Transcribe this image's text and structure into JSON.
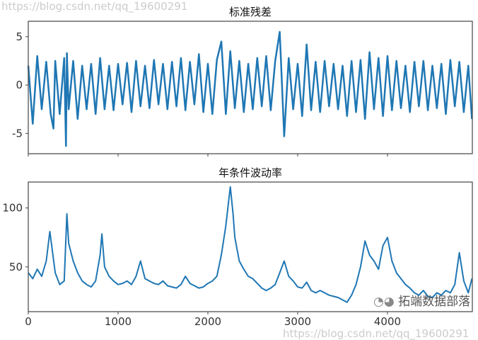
{
  "chart_data": [
    {
      "type": "line",
      "title": "标准残差",
      "color": "#1f77b4",
      "xlim": [
        0,
        4945
      ],
      "ylim": [
        -7.1,
        6.6
      ],
      "yticks": [
        5,
        0,
        -5
      ],
      "ytick_labels": [
        "5",
        "0",
        "-5"
      ],
      "xticks": [
        0,
        1000,
        2000,
        3000,
        4000
      ],
      "xtick_labels": [],
      "x": [
        0,
        50,
        100,
        150,
        200,
        250,
        280,
        300,
        350,
        400,
        420,
        430,
        450,
        500,
        550,
        600,
        650,
        700,
        750,
        800,
        850,
        900,
        950,
        1000,
        1050,
        1100,
        1150,
        1200,
        1250,
        1300,
        1350,
        1400,
        1450,
        1500,
        1550,
        1600,
        1650,
        1700,
        1750,
        1800,
        1850,
        1900,
        1950,
        2000,
        2050,
        2100,
        2150,
        2200,
        2250,
        2300,
        2350,
        2400,
        2450,
        2500,
        2550,
        2600,
        2650,
        2700,
        2750,
        2800,
        2850,
        2900,
        2950,
        3000,
        3050,
        3100,
        3150,
        3200,
        3250,
        3300,
        3350,
        3400,
        3450,
        3500,
        3550,
        3600,
        3650,
        3700,
        3750,
        3800,
        3850,
        3900,
        3950,
        4000,
        4050,
        4100,
        4150,
        4200,
        4250,
        4300,
        4350,
        4400,
        4450,
        4500,
        4550,
        4600,
        4650,
        4700,
        4750,
        4800,
        4850,
        4900,
        4940
      ],
      "y": [
        2,
        -4,
        3,
        -2.5,
        2.4,
        -3,
        -4.5,
        2.5,
        -3,
        2.8,
        -6.3,
        3.3,
        -2.5,
        2.5,
        -3.5,
        2,
        -2.5,
        2.2,
        -3,
        2.8,
        -2.5,
        2,
        -2.6,
        2.2,
        -2,
        2.3,
        -2.8,
        2.5,
        -2.2,
        2,
        -2.4,
        2.6,
        -2,
        2.2,
        -2.5,
        2.4,
        -2.2,
        2.8,
        -2.6,
        2.4,
        -2,
        3.2,
        -2.8,
        2.2,
        -3,
        2.6,
        4.5,
        -3,
        3.5,
        -2.4,
        2.5,
        -2.8,
        2.2,
        -2.5,
        2.8,
        -2.2,
        3,
        -2.6,
        2.5,
        5.5,
        -5.3,
        2.8,
        -2.5,
        2.2,
        -3.2,
        4.2,
        -2.6,
        2.4,
        -2.8,
        2.5,
        -2.2,
        2.2,
        -2.5,
        2,
        -3.2,
        2.5,
        -2.8,
        2.6,
        -3.5,
        3.4,
        -2.5,
        2.8,
        -3.2,
        3,
        -2.6,
        2.5,
        -2.4,
        2,
        -2.8,
        2.4,
        -2.2,
        2.5,
        -2.6,
        2,
        -2.4,
        2.2,
        -3,
        2.6,
        -2.2,
        2.4,
        -2.8,
        2,
        -3.5
      ]
    },
    {
      "type": "line",
      "title": "年条件波动率",
      "color": "#1f77b4",
      "xlim": [
        0,
        4945
      ],
      "ylim": [
        12,
        122
      ],
      "yticks": [
        100,
        50
      ],
      "ytick_labels": [
        "100",
        "50"
      ],
      "xticks": [
        0,
        1000,
        2000,
        3000,
        4000
      ],
      "xtick_labels": [
        "0",
        "1000",
        "2000",
        "3000",
        "4000"
      ],
      "x": [
        0,
        50,
        100,
        150,
        200,
        240,
        300,
        350,
        400,
        430,
        450,
        500,
        550,
        600,
        650,
        700,
        750,
        800,
        820,
        850,
        900,
        950,
        1000,
        1050,
        1100,
        1150,
        1200,
        1250,
        1300,
        1350,
        1400,
        1450,
        1500,
        1550,
        1600,
        1650,
        1700,
        1750,
        1800,
        1850,
        1900,
        1950,
        2000,
        2050,
        2100,
        2150,
        2200,
        2230,
        2250,
        2280,
        2300,
        2350,
        2400,
        2450,
        2500,
        2550,
        2600,
        2650,
        2700,
        2750,
        2800,
        2850,
        2900,
        2950,
        3000,
        3050,
        3100,
        3150,
        3200,
        3250,
        3300,
        3350,
        3400,
        3450,
        3500,
        3550,
        3600,
        3650,
        3700,
        3750,
        3800,
        3850,
        3900,
        3950,
        4000,
        4050,
        4100,
        4150,
        4200,
        4250,
        4300,
        4350,
        4400,
        4450,
        4500,
        4550,
        4600,
        4650,
        4700,
        4750,
        4800,
        4850,
        4900,
        4940
      ],
      "y": [
        45,
        40,
        48,
        42,
        55,
        80,
        45,
        35,
        38,
        95,
        70,
        55,
        45,
        38,
        35,
        33,
        38,
        60,
        78,
        50,
        42,
        38,
        35,
        36,
        38,
        35,
        42,
        55,
        40,
        38,
        36,
        35,
        38,
        34,
        33,
        32,
        35,
        42,
        36,
        34,
        32,
        33,
        36,
        38,
        42,
        60,
        85,
        105,
        118,
        95,
        75,
        55,
        48,
        42,
        40,
        36,
        32,
        30,
        32,
        35,
        45,
        55,
        42,
        38,
        33,
        32,
        37,
        30,
        28,
        30,
        28,
        26,
        25,
        24,
        22,
        20,
        26,
        35,
        50,
        72,
        60,
        55,
        48,
        68,
        75,
        55,
        45,
        40,
        35,
        32,
        28,
        26,
        30,
        25,
        24,
        28,
        26,
        30,
        28,
        35,
        62,
        38,
        28,
        40
      ]
    }
  ],
  "watermark": {
    "brand": "拓端数据部落",
    "url": "https://blog.csdn.net/qq_19600291"
  }
}
